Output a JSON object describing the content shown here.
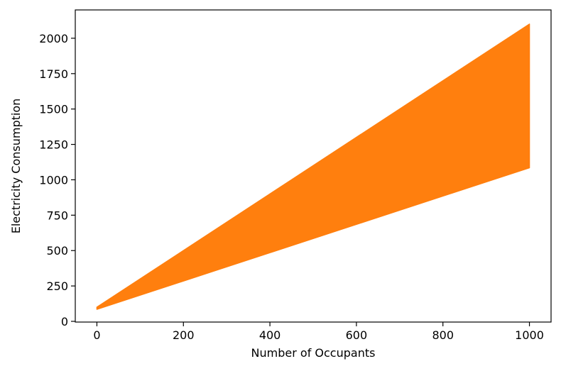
{
  "chart_data": {
    "type": "area",
    "xlabel": "Number of Occupants",
    "ylabel": "Electricity Consumption",
    "xlim": [
      -50,
      1050
    ],
    "ylim": [
      -5,
      2200
    ],
    "xticks": [
      0,
      200,
      400,
      600,
      800,
      1000
    ],
    "yticks": [
      0,
      250,
      500,
      750,
      1000,
      1250,
      1500,
      1750,
      2000
    ],
    "grid": false,
    "legend": "none",
    "series": [
      {
        "color": "#ff7f0e",
        "x": [
          0,
          1000
        ],
        "lower": [
          85,
          1085
        ],
        "upper": [
          100,
          2100
        ]
      }
    ]
  }
}
